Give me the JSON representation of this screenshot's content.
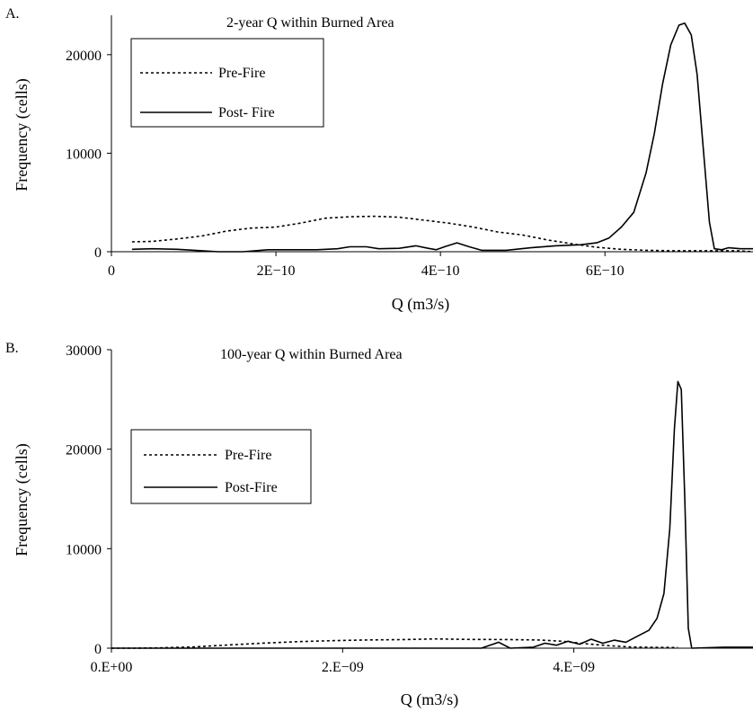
{
  "chart_data": [
    {
      "panel_label": "A.",
      "type": "line",
      "title": "2-year Q within Burned Area",
      "xlabel": "Q (m3/s)",
      "ylabel": "Frequency (cells)",
      "xlim": [
        0,
        7.8e-10
      ],
      "ylim": [
        0,
        24000
      ],
      "x_ticks": [
        {
          "value": 0,
          "label": "0"
        },
        {
          "value": 2e-10,
          "label": "2E−10"
        },
        {
          "value": 4e-10,
          "label": "4E−10"
        },
        {
          "value": 6e-10,
          "label": "6E−10"
        }
      ],
      "y_ticks": [
        {
          "value": 0,
          "label": "0"
        },
        {
          "value": 10000,
          "label": "10000"
        },
        {
          "value": 20000,
          "label": "20000"
        }
      ],
      "grid": false,
      "legend_position": "top-left",
      "series": [
        {
          "name": "Pre-Fire",
          "style": "dotted",
          "points": [
            [
              2.5e-11,
              1000
            ],
            [
              5e-11,
              1050
            ],
            [
              8e-11,
              1300
            ],
            [
              1.1e-10,
              1600
            ],
            [
              1.4e-10,
              2100
            ],
            [
              1.7e-10,
              2400
            ],
            [
              2e-10,
              2500
            ],
            [
              2.3e-10,
              2900
            ],
            [
              2.6e-10,
              3400
            ],
            [
              2.9e-10,
              3550
            ],
            [
              3.2e-10,
              3600
            ],
            [
              3.5e-10,
              3500
            ],
            [
              3.8e-10,
              3200
            ],
            [
              4.1e-10,
              2900
            ],
            [
              4.4e-10,
              2500
            ],
            [
              4.7e-10,
              2000
            ],
            [
              5e-10,
              1700
            ],
            [
              5.3e-10,
              1200
            ],
            [
              5.6e-10,
              800
            ],
            [
              5.9e-10,
              450
            ],
            [
              6.2e-10,
              250
            ],
            [
              6.5e-10,
              150
            ],
            [
              6.8e-10,
              100
            ],
            [
              7.1e-10,
              100
            ],
            [
              7.4e-10,
              100
            ],
            [
              7.6e-10,
              100
            ],
            [
              7.8e-10,
              0
            ]
          ]
        },
        {
          "name": "Post- Fire",
          "style": "solid",
          "points": [
            [
              2.5e-11,
              250
            ],
            [
              5e-11,
              300
            ],
            [
              8e-11,
              250
            ],
            [
              1.1e-10,
              100
            ],
            [
              1.3e-10,
              0
            ],
            [
              1.6e-10,
              0
            ],
            [
              1.9e-10,
              200
            ],
            [
              2.2e-10,
              200
            ],
            [
              2.5e-10,
              200
            ],
            [
              2.75e-10,
              300
            ],
            [
              2.9e-10,
              500
            ],
            [
              3.1e-10,
              500
            ],
            [
              3.25e-10,
              300
            ],
            [
              3.5e-10,
              350
            ],
            [
              3.7e-10,
              600
            ],
            [
              3.85e-10,
              350
            ],
            [
              3.95e-10,
              200
            ],
            [
              4.05e-10,
              500
            ],
            [
              4.2e-10,
              900
            ],
            [
              4.35e-10,
              500
            ],
            [
              4.5e-10,
              150
            ],
            [
              4.8e-10,
              150
            ],
            [
              5.1e-10,
              400
            ],
            [
              5.4e-10,
              600
            ],
            [
              5.7e-10,
              700
            ],
            [
              5.9e-10,
              900
            ],
            [
              6.05e-10,
              1400
            ],
            [
              6.2e-10,
              2500
            ],
            [
              6.35e-10,
              4000
            ],
            [
              6.5e-10,
              8000
            ],
            [
              6.6e-10,
              12000
            ],
            [
              6.7e-10,
              17000
            ],
            [
              6.8e-10,
              21000
            ],
            [
              6.9e-10,
              23000
            ],
            [
              6.97e-10,
              23200
            ],
            [
              7.05e-10,
              22000
            ],
            [
              7.12e-10,
              18000
            ],
            [
              7.2e-10,
              10000
            ],
            [
              7.27e-10,
              3000
            ],
            [
              7.33e-10,
              300
            ],
            [
              7.42e-10,
              200
            ],
            [
              7.5e-10,
              400
            ],
            [
              7.65e-10,
              300
            ],
            [
              7.8e-10,
              300
            ]
          ]
        }
      ]
    },
    {
      "panel_label": "B.",
      "type": "line",
      "title": "100-year Q within Burned Area",
      "xlabel": "Q (m3/s)",
      "ylabel": "Frequency (cells)",
      "xlim": [
        0,
        5.55e-09
      ],
      "ylim": [
        0,
        30000
      ],
      "x_ticks": [
        {
          "value": 0,
          "label": "0.E+00"
        },
        {
          "value": 2e-09,
          "label": "2.E−09"
        },
        {
          "value": 4e-09,
          "label": "4.E−09"
        }
      ],
      "y_ticks": [
        {
          "value": 0,
          "label": "0"
        },
        {
          "value": 10000,
          "label": "10000"
        },
        {
          "value": 20000,
          "label": "20000"
        },
        {
          "value": 30000,
          "label": "30000"
        }
      ],
      "grid": false,
      "legend_position": "left",
      "series": [
        {
          "name": "Pre-Fire",
          "style": "dotted",
          "points": [
            [
              0,
              0
            ],
            [
              2e-10,
              0
            ],
            [
              4e-10,
              30
            ],
            [
              7e-10,
              120
            ],
            [
              1e-09,
              320
            ],
            [
              1.3e-09,
              500
            ],
            [
              1.6e-09,
              650
            ],
            [
              1.9e-09,
              750
            ],
            [
              2.2e-09,
              820
            ],
            [
              2.5e-09,
              860
            ],
            [
              2.8e-09,
              930
            ],
            [
              3.1e-09,
              880
            ],
            [
              3.4e-09,
              870
            ],
            [
              3.7e-09,
              820
            ],
            [
              3.9e-09,
              700
            ],
            [
              4.1e-09,
              450
            ],
            [
              4.3e-09,
              250
            ],
            [
              4.5e-09,
              120
            ],
            [
              4.7e-09,
              80
            ],
            [
              4.9e-09,
              60
            ]
          ]
        },
        {
          "name": "Post-Fire",
          "style": "solid",
          "points": [
            [
              0,
              0
            ],
            [
              3.2e-09,
              0
            ],
            [
              3.35e-09,
              600
            ],
            [
              3.45e-09,
              0
            ],
            [
              3.65e-09,
              100
            ],
            [
              3.75e-09,
              500
            ],
            [
              3.85e-09,
              300
            ],
            [
              3.95e-09,
              700
            ],
            [
              4.05e-09,
              400
            ],
            [
              4.15e-09,
              900
            ],
            [
              4.25e-09,
              500
            ],
            [
              4.35e-09,
              800
            ],
            [
              4.45e-09,
              600
            ],
            [
              4.55e-09,
              1200
            ],
            [
              4.65e-09,
              1800
            ],
            [
              4.72e-09,
              3000
            ],
            [
              4.78e-09,
              5500
            ],
            [
              4.83e-09,
              12000
            ],
            [
              4.87e-09,
              22000
            ],
            [
              4.9e-09,
              26800
            ],
            [
              4.93e-09,
              26000
            ],
            [
              4.96e-09,
              15000
            ],
            [
              4.99e-09,
              2000
            ],
            [
              5.02e-09,
              0
            ],
            [
              5.3e-09,
              100
            ],
            [
              5.55e-09,
              100
            ]
          ]
        }
      ]
    }
  ]
}
